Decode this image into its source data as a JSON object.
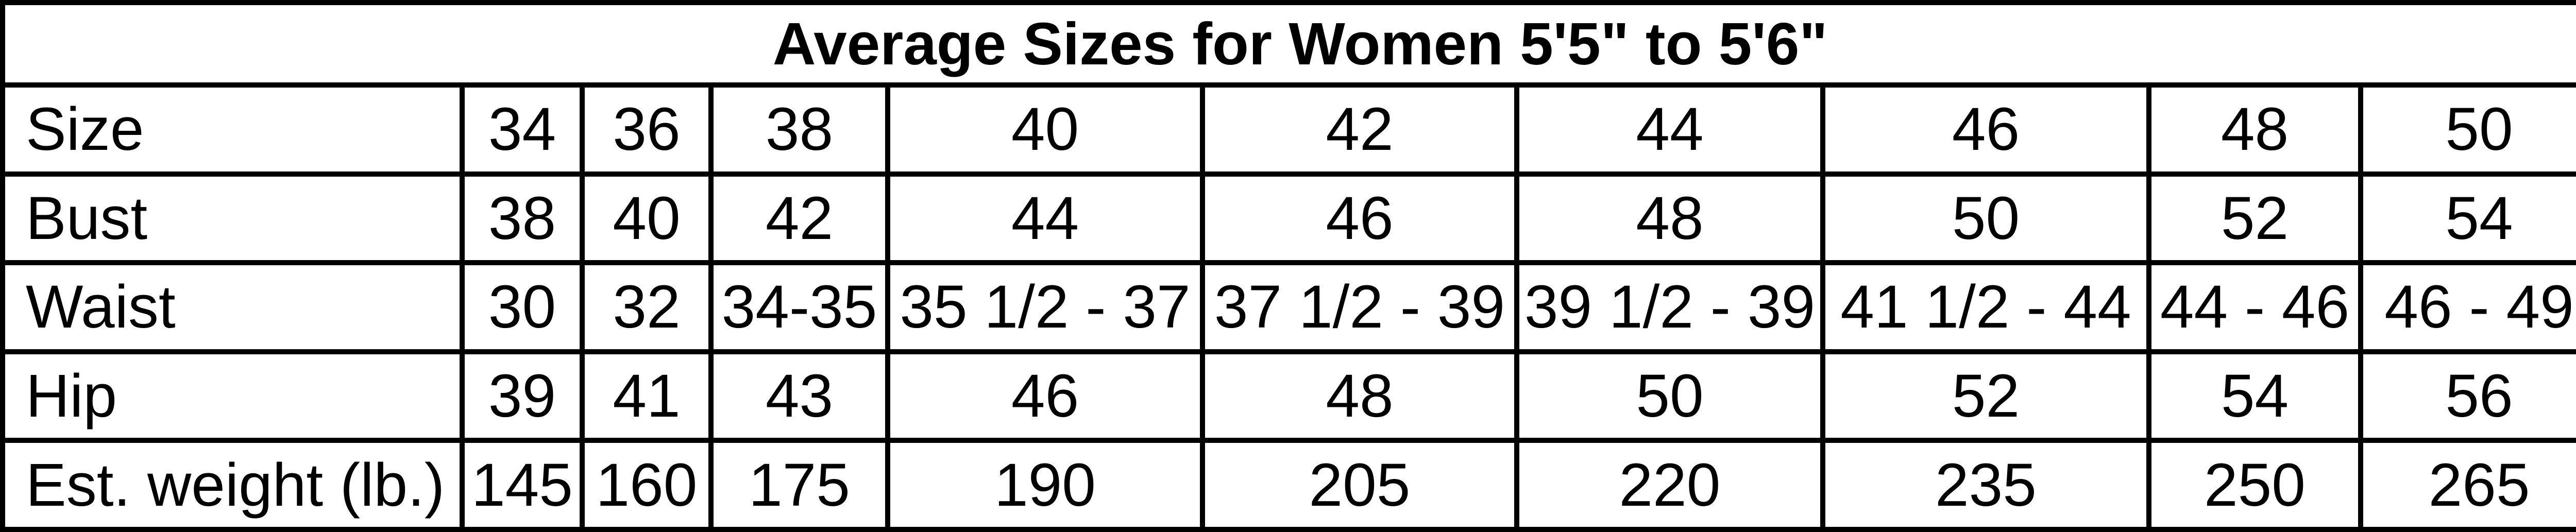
{
  "title": "Average Sizes for Women 5'5\" to 5'6\"",
  "rows": [
    {
      "label": "Size",
      "values": [
        "34",
        "36",
        "38",
        "40",
        "42",
        "44",
        "46",
        "48",
        "50"
      ]
    },
    {
      "label": "Bust",
      "values": [
        "38",
        "40",
        "42",
        "44",
        "46",
        "48",
        "50",
        "52",
        "54"
      ]
    },
    {
      "label": "Waist",
      "values": [
        "30",
        "32",
        "34-35",
        "35 1/2 - 37",
        "37 1/2 - 39",
        "39 1/2 - 39",
        "41 1/2 - 44",
        "44 - 46",
        "46 - 49"
      ]
    },
    {
      "label": "Hip",
      "values": [
        "39",
        "41",
        "43",
        "46",
        "48",
        "50",
        "52",
        "54",
        "56"
      ]
    },
    {
      "label": "Est. weight (lb.)",
      "values": [
        "145",
        "160",
        "175",
        "190",
        "205",
        "220",
        "235",
        "250",
        "265"
      ]
    }
  ]
}
